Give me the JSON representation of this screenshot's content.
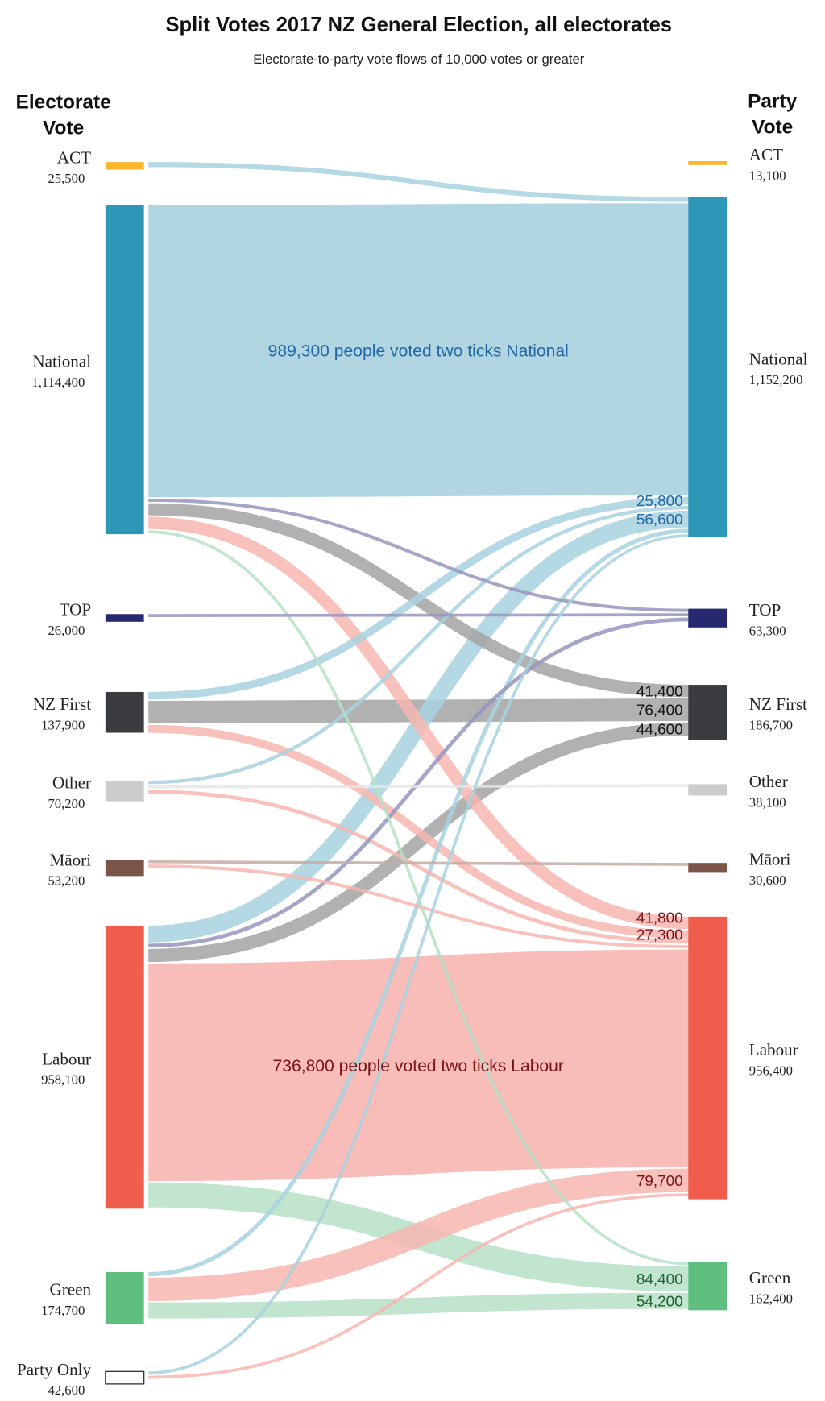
{
  "chart_data": {
    "type": "sankey",
    "title": "Split Votes 2017 NZ General Election, all electorates",
    "subtitle": "Electorate-to-party vote flows of 10,000 votes or greater",
    "left_header": [
      "Electorate",
      "Vote"
    ],
    "right_header": [
      "Party",
      "Vote"
    ],
    "left_nodes": [
      {
        "name": "ACT",
        "value": "25,500",
        "votes": 25500,
        "color": "#fbb52d"
      },
      {
        "name": "National",
        "value": "1,114,400",
        "votes": 1114400,
        "color": "#2e96b7"
      },
      {
        "name": "TOP",
        "value": "26,000",
        "votes": 26000,
        "color": "#26296f"
      },
      {
        "name": "NZ First",
        "value": "137,900",
        "votes": 137900,
        "color": "#3b3c40"
      },
      {
        "name": "Other",
        "value": "70,200",
        "votes": 70200,
        "color": "#cccccc"
      },
      {
        "name": "Māori",
        "value": "53,200",
        "votes": 53200,
        "color": "#7a5548"
      },
      {
        "name": "Labour",
        "value": "958,100",
        "votes": 958100,
        "color": "#f05d4c"
      },
      {
        "name": "Green",
        "value": "174,700",
        "votes": 174700,
        "color": "#5fbf7f"
      },
      {
        "name": "Party Only",
        "value": "42,600",
        "votes": 42600,
        "color": "#ffffff"
      }
    ],
    "right_nodes": [
      {
        "name": "ACT",
        "value": "13,100",
        "votes": 13100,
        "color": "#fbb52d",
        "flow_color": "#f7d58a",
        "label_color": "#8a5a00"
      },
      {
        "name": "National",
        "value": "1,152,200",
        "votes": 1152200,
        "color": "#2e96b7",
        "flow_color": "#a8d2df",
        "label_color": "#2368a6"
      },
      {
        "name": "TOP",
        "value": "63,300",
        "votes": 63300,
        "color": "#26296f",
        "flow_color": "#9596bd",
        "label_color": "#26296f"
      },
      {
        "name": "NZ First",
        "value": "186,700",
        "votes": 186700,
        "color": "#3b3c40",
        "flow_color": "#a3a3a5",
        "label_color": "#111111"
      },
      {
        "name": "Other",
        "value": "38,100",
        "votes": 38100,
        "color": "#cccccc",
        "flow_color": "#e6e6e6",
        "label_color": "#444444"
      },
      {
        "name": "Māori",
        "value": "30,600",
        "votes": 30600,
        "color": "#7a5548",
        "flow_color": "#c4aba4",
        "label_color": "#5a3a30"
      },
      {
        "name": "Labour",
        "value": "956,400",
        "votes": 956400,
        "color": "#f05d4c",
        "flow_color": "#f7b6b0",
        "label_color": "#7a1414"
      },
      {
        "name": "Green",
        "value": "162,400",
        "votes": 162400,
        "color": "#5fbf7f",
        "flow_color": "#b6e0c5",
        "label_color": "#1f5f2e"
      }
    ],
    "links": [
      {
        "source": "ACT",
        "target": "National",
        "votes": 17000
      },
      {
        "source": "National",
        "target": "National",
        "votes": 989300,
        "label": "989,300 people voted two ticks National"
      },
      {
        "source": "National",
        "target": "TOP",
        "votes": 11000
      },
      {
        "source": "National",
        "target": "NZ First",
        "votes": 41400,
        "label": "41,400"
      },
      {
        "source": "National",
        "target": "Labour",
        "votes": 41800,
        "label": "41,800"
      },
      {
        "source": "National",
        "target": "Green",
        "votes": 10000
      },
      {
        "source": "TOP",
        "target": "TOP",
        "votes": 10000
      },
      {
        "source": "NZ First",
        "target": "National",
        "votes": 25800,
        "label": "25,800"
      },
      {
        "source": "NZ First",
        "target": "NZ First",
        "votes": 76400,
        "label": "76,400"
      },
      {
        "source": "NZ First",
        "target": "Labour",
        "votes": 27300,
        "label": "27,300"
      },
      {
        "source": "Other",
        "target": "National",
        "votes": 12000
      },
      {
        "source": "Other",
        "target": "Other",
        "votes": 10000
      },
      {
        "source": "Other",
        "target": "Labour",
        "votes": 13000
      },
      {
        "source": "Māori",
        "target": "Māori",
        "votes": 10000
      },
      {
        "source": "Māori",
        "target": "Labour",
        "votes": 11000
      },
      {
        "source": "Labour",
        "target": "National",
        "votes": 56600,
        "label": "56,600"
      },
      {
        "source": "Labour",
        "target": "TOP",
        "votes": 13000
      },
      {
        "source": "Labour",
        "target": "NZ First",
        "votes": 44600,
        "label": "44,600"
      },
      {
        "source": "Labour",
        "target": "Labour",
        "votes": 736800,
        "label": "736,800 people voted two ticks Labour"
      },
      {
        "source": "Labour",
        "target": "Green",
        "votes": 84400,
        "label": "84,400"
      },
      {
        "source": "Green",
        "target": "National",
        "votes": 14000
      },
      {
        "source": "Green",
        "target": "Labour",
        "votes": 79700,
        "label": "79,700"
      },
      {
        "source": "Green",
        "target": "Green",
        "votes": 54200,
        "label": "54,200"
      },
      {
        "source": "Party Only",
        "target": "National",
        "votes": 10000
      },
      {
        "source": "Party Only",
        "target": "Labour",
        "votes": 10000
      }
    ]
  }
}
